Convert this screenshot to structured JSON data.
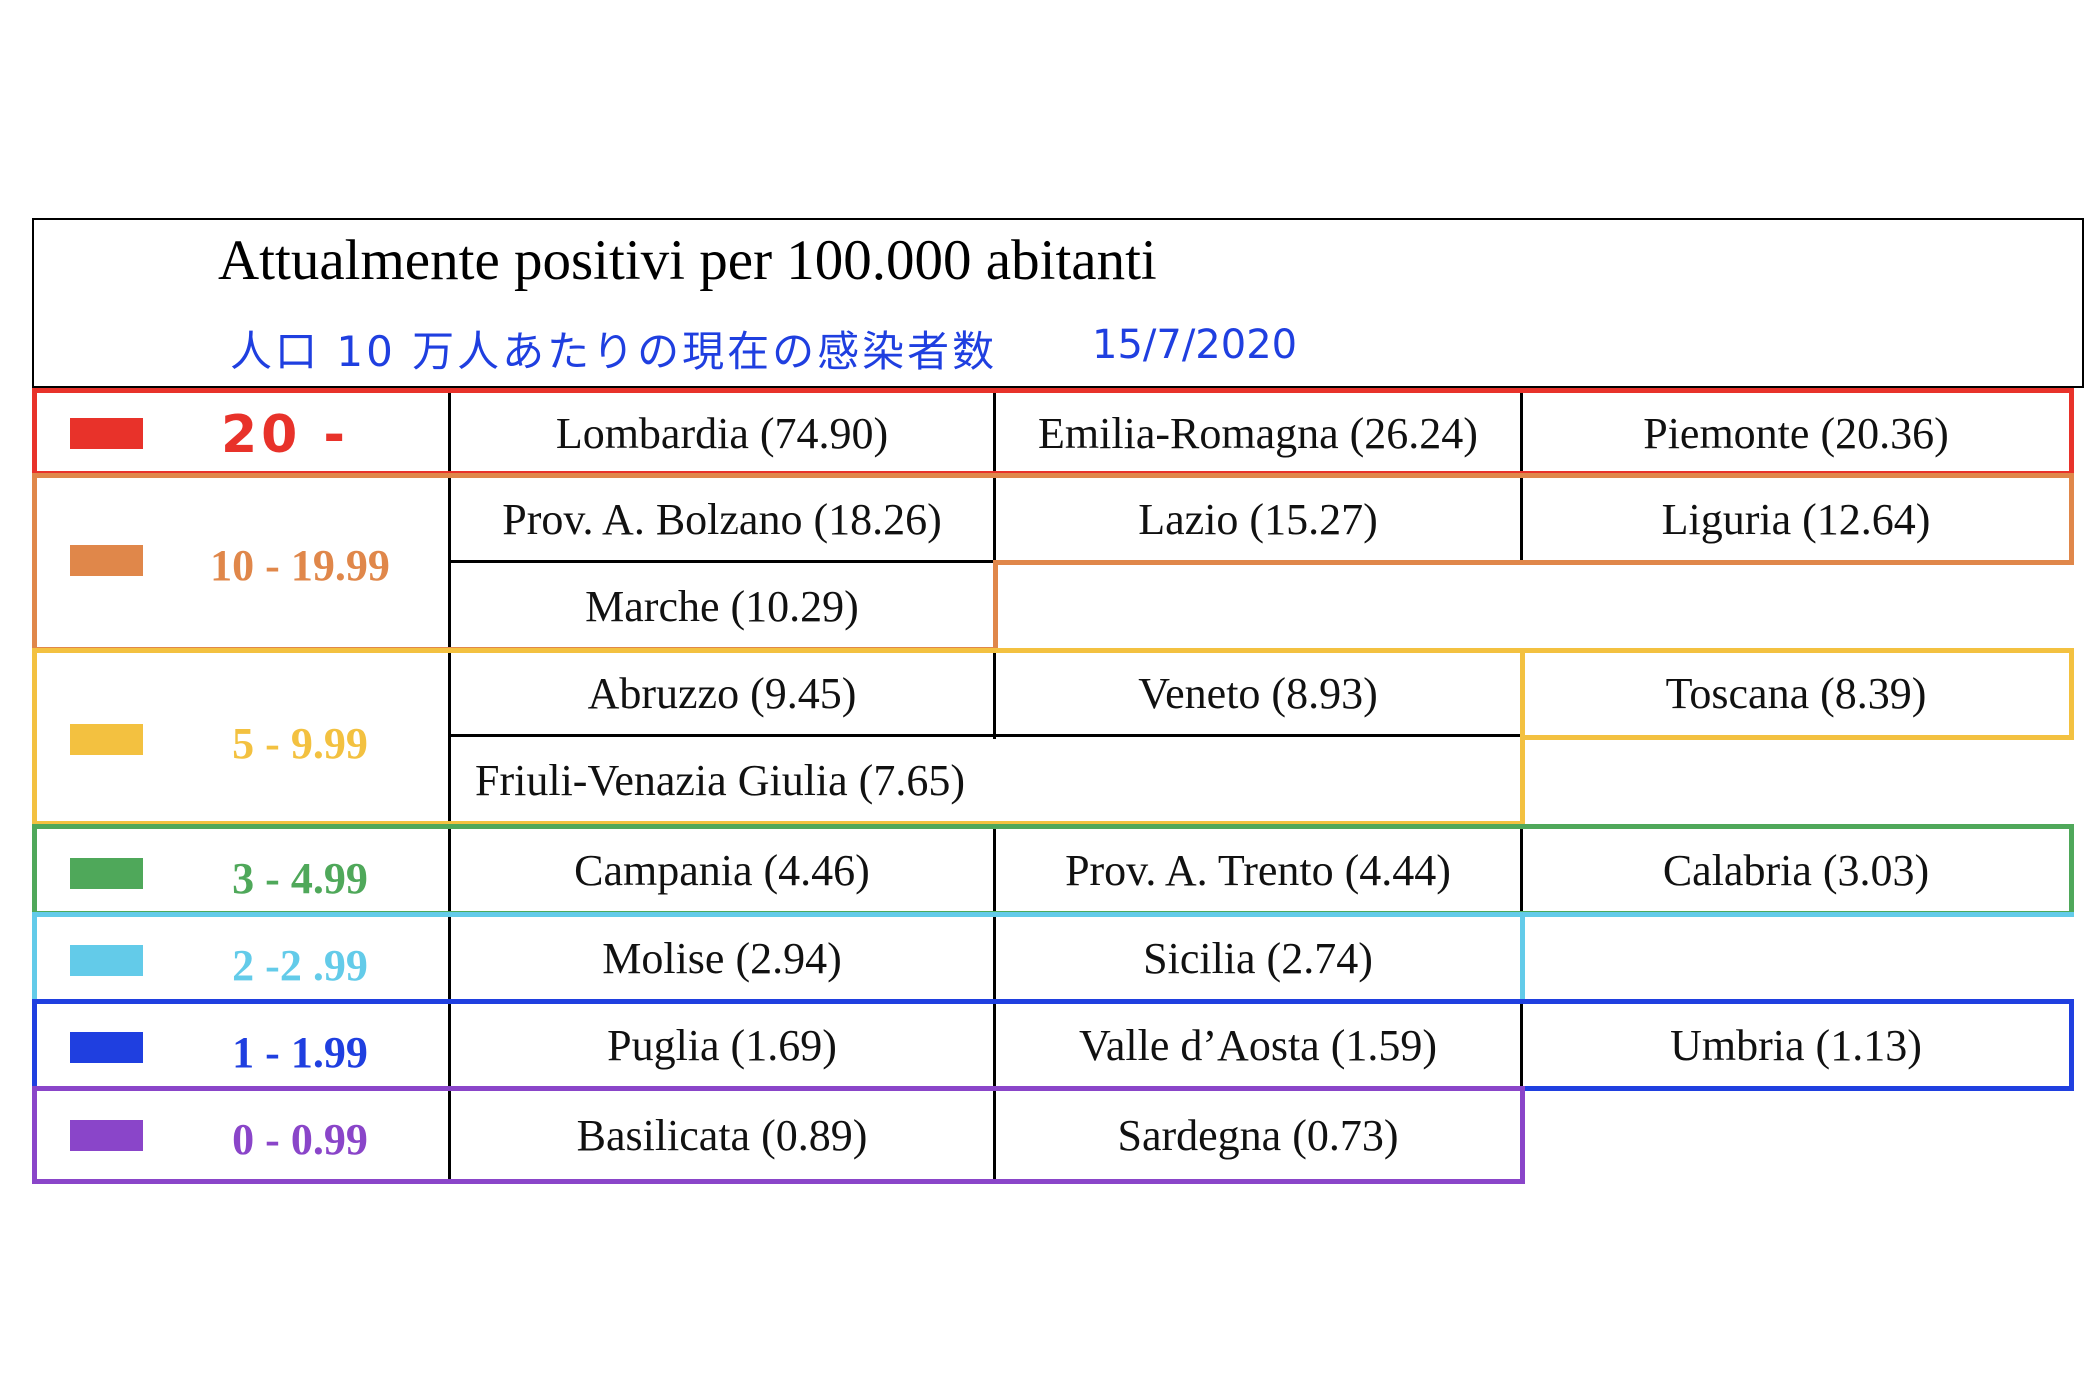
{
  "header": {
    "title": "Attualmente positivi per 100.000 abitanti",
    "subtitle_jp": "人口 10 万人あたりの現在の感染者数",
    "date": "15/7/2020"
  },
  "tiers": [
    {
      "range": "20 -",
      "color": "#e8322a",
      "regions": [
        "Lombardia (74.90)",
        "Emilia-Romagna (26.24)",
        "Piemonte (20.36)"
      ]
    },
    {
      "range": "10 - 19.99",
      "color": "#e0874a",
      "regions": [
        "Prov. A. Bolzano (18.26)",
        "Lazio (15.27)",
        "Liguria (12.64)",
        "Marche (10.29)"
      ]
    },
    {
      "range": "5 - 9.99",
      "color": "#f3c140",
      "regions": [
        "Abruzzo (9.45)",
        "Veneto (8.93)",
        "Toscana (8.39)",
        "Friuli-Venazia Giulia (7.65)"
      ]
    },
    {
      "range": "3 - 4.99",
      "color": "#4fa85a",
      "regions": [
        "Campania (4.46)",
        "Prov. A. Trento (4.44)",
        "Calabria (3.03)"
      ]
    },
    {
      "range": "2 -2 .99",
      "color": "#63cbe9",
      "regions": [
        "Molise (2.94)",
        "Sicilia (2.74)"
      ]
    },
    {
      "range": "1 - 1.99",
      "color": "#1f3fe0",
      "regions": [
        "Puglia (1.69)",
        "Valle d’Aosta (1.59)",
        "Umbria (1.13)"
      ]
    },
    {
      "range": "0 - 0.99",
      "color": "#8a45c9",
      "regions": [
        "Basilicata (0.89)",
        "Sardegna (0.73)"
      ]
    }
  ]
}
